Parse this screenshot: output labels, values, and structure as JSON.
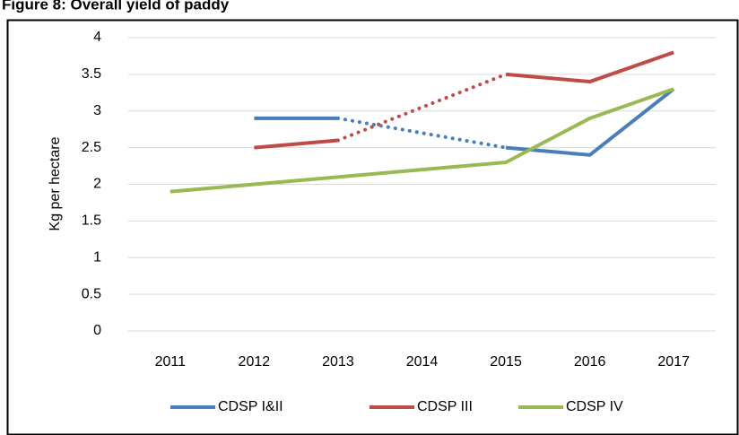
{
  "chart_data": {
    "type": "line",
    "title": "Figure 8: Overall yield of paddy",
    "y_label": "Kg per hectare",
    "categories": [
      "2011",
      "2012",
      "2013",
      "2014",
      "2015",
      "2016",
      "2017"
    ],
    "series": [
      {
        "name": "CDSP I&II",
        "color": "#4a7ebb",
        "values": [
          null,
          2.9,
          2.9,
          null,
          2.5,
          2.4,
          3.3
        ]
      },
      {
        "name": "CDSP III",
        "color": "#be4b48",
        "values": [
          null,
          2.5,
          2.6,
          null,
          3.5,
          3.4,
          3.8
        ]
      },
      {
        "name": "CDSP IV",
        "color": "#98b954",
        "values": [
          1.9,
          2.0,
          2.1,
          2.2,
          2.3,
          2.9,
          3.3
        ]
      }
    ],
    "gaps": "dotted",
    "ylim": [
      0,
      4
    ],
    "yticks": [
      0,
      0.5,
      1,
      1.5,
      2,
      2.5,
      3,
      3.5,
      4
    ],
    "grid": true,
    "legend": "bottom"
  }
}
